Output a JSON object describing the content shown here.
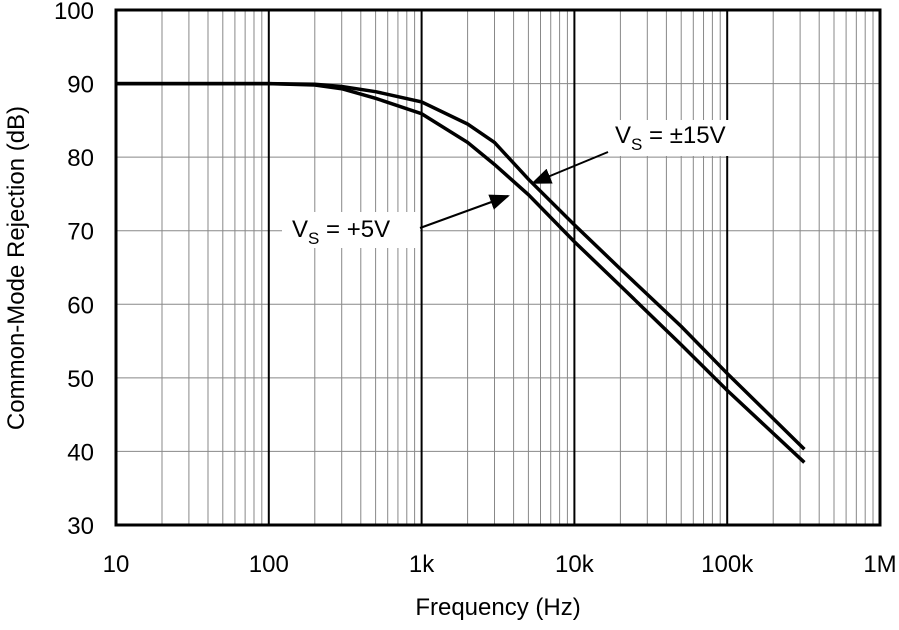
{
  "chart_data": {
    "type": "line",
    "x_label": "Frequency (Hz)",
    "y_label": "Common-Mode Rejection (dB)",
    "log_x": true,
    "grid": true,
    "x": [
      10,
      100,
      200,
      300,
      500,
      1000,
      2000,
      3000,
      5000,
      10000,
      20000,
      50000,
      100000,
      320000
    ],
    "series": [
      {
        "name": "±15V",
        "color": "#000000",
        "values": [
          90,
          90,
          89.9,
          89.6,
          88.9,
          87.5,
          84.5,
          82,
          77,
          70.8,
          64.8,
          57,
          50.6,
          40.3
        ]
      },
      {
        "name": "+5V",
        "color": "#000000",
        "values": [
          90,
          90,
          89.8,
          89.3,
          88,
          85.9,
          82,
          79,
          74.9,
          68.5,
          62.5,
          54.5,
          48.3,
          38.5
        ]
      }
    ],
    "annotations": [
      {
        "main": "V",
        "sub": "S",
        "rest": " = ±15V"
      },
      {
        "main": "V",
        "sub": "S",
        "rest": " = +5V"
      }
    ],
    "xlim": [
      10,
      1000000
    ],
    "xticks": [
      10,
      100,
      {
        "value": 1000,
        "label": "1k"
      },
      {
        "value": 10000,
        "label": "10k"
      },
      {
        "value": 100000,
        "label": "100k"
      },
      {
        "value": 1000000,
        "label": "1M"
      }
    ],
    "ylim": [
      30,
      100
    ],
    "yticks": [
      30,
      40,
      50,
      60,
      70,
      80,
      90,
      100
    ]
  }
}
